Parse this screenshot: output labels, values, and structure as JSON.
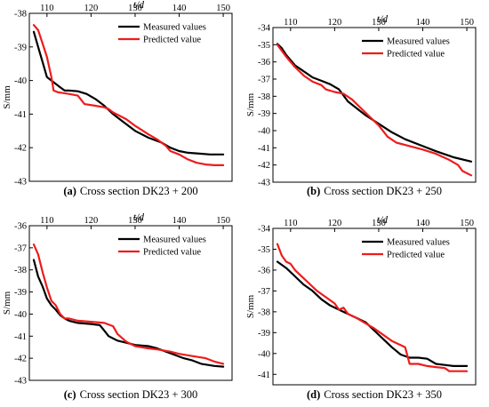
{
  "figure": {
    "colors": {
      "measured": "#000000",
      "predicted": "#ee1c1c",
      "axis": "#000000"
    }
  },
  "chart_data": [
    {
      "type": "line",
      "caption": {
        "letter": "(a)",
        "text": "Cross section DK23 + 200"
      },
      "xlabel": "t/d",
      "ylabel": "S/mm",
      "xlim": [
        106,
        152
      ],
      "ylim": [
        -43,
        -38
      ],
      "x_ticks": [
        110,
        120,
        130,
        140,
        150
      ],
      "y_ticks": [
        -38,
        -39,
        -40,
        -41,
        -42,
        -43
      ],
      "x_axis_position": "top",
      "grid": false,
      "legend": "top-right",
      "series": [
        {
          "name": "Measured values",
          "color": "#000000",
          "points": [
            [
              107,
              -38.55
            ],
            [
              108,
              -39.0
            ],
            [
              109,
              -39.45
            ],
            [
              110,
              -39.9
            ],
            [
              111,
              -40.0
            ],
            [
              112,
              -40.1
            ],
            [
              113,
              -40.2
            ],
            [
              114,
              -40.3
            ],
            [
              115,
              -40.3
            ],
            [
              117,
              -40.32
            ],
            [
              119,
              -40.4
            ],
            [
              121,
              -40.55
            ],
            [
              123,
              -40.75
            ],
            [
              125,
              -41.0
            ],
            [
              127,
              -41.2
            ],
            [
              130,
              -41.5
            ],
            [
              133,
              -41.7
            ],
            [
              136,
              -41.85
            ],
            [
              138,
              -42.0
            ],
            [
              140,
              -42.1
            ],
            [
              142,
              -42.15
            ],
            [
              145,
              -42.18
            ],
            [
              147,
              -42.2
            ],
            [
              150,
              -42.2
            ]
          ]
        },
        {
          "name": "Predicted value",
          "color": "#ee1c1c",
          "points": [
            [
              107,
              -38.35
            ],
            [
              108,
              -38.5
            ],
            [
              109,
              -38.9
            ],
            [
              110,
              -39.3
            ],
            [
              111,
              -39.9
            ],
            [
              111.5,
              -40.3
            ],
            [
              112.5,
              -40.35
            ],
            [
              115,
              -40.4
            ],
            [
              117,
              -40.45
            ],
            [
              118.5,
              -40.7
            ],
            [
              121,
              -40.75
            ],
            [
              123,
              -40.8
            ],
            [
              124,
              -40.85
            ],
            [
              125,
              -40.95
            ],
            [
              128,
              -41.15
            ],
            [
              130,
              -41.35
            ],
            [
              133,
              -41.6
            ],
            [
              135,
              -41.75
            ],
            [
              137,
              -41.95
            ],
            [
              138,
              -42.1
            ],
            [
              140,
              -42.2
            ],
            [
              142,
              -42.35
            ],
            [
              144,
              -42.45
            ],
            [
              146,
              -42.5
            ],
            [
              148,
              -42.52
            ],
            [
              150,
              -42.52
            ]
          ]
        }
      ]
    },
    {
      "type": "line",
      "caption": {
        "letter": "(b)",
        "text": "Cross section DK23 + 250"
      },
      "xlabel": "t/d",
      "ylabel": "S/mm",
      "xlim": [
        106,
        152
      ],
      "ylim": [
        -43,
        -34
      ],
      "x_ticks": [
        110,
        120,
        130,
        140,
        150
      ],
      "y_ticks": [
        -34,
        -35,
        -36,
        -37,
        -38,
        -39,
        -40,
        -41,
        -42,
        -43
      ],
      "x_axis_position": "top",
      "grid": false,
      "legend": "top-right",
      "series": [
        {
          "name": "Measured values",
          "color": "#000000",
          "points": [
            [
              107,
              -34.95
            ],
            [
              108,
              -35.2
            ],
            [
              109,
              -35.6
            ],
            [
              111,
              -36.2
            ],
            [
              113,
              -36.55
            ],
            [
              115,
              -36.9
            ],
            [
              117,
              -37.1
            ],
            [
              119,
              -37.3
            ],
            [
              121,
              -37.6
            ],
            [
              123,
              -38.3
            ],
            [
              125,
              -38.7
            ],
            [
              127,
              -39.1
            ],
            [
              130,
              -39.6
            ],
            [
              133,
              -40.1
            ],
            [
              136,
              -40.5
            ],
            [
              140,
              -40.9
            ],
            [
              143,
              -41.2
            ],
            [
              147,
              -41.55
            ],
            [
              151,
              -41.8
            ]
          ]
        },
        {
          "name": "Predicted value",
          "color": "#ee1c1c",
          "points": [
            [
              107,
              -35.0
            ],
            [
              108,
              -35.35
            ],
            [
              109,
              -35.7
            ],
            [
              111,
              -36.3
            ],
            [
              113,
              -36.8
            ],
            [
              115,
              -37.15
            ],
            [
              117,
              -37.35
            ],
            [
              118,
              -37.6
            ],
            [
              120,
              -37.75
            ],
            [
              122,
              -37.85
            ],
            [
              124,
              -38.2
            ],
            [
              126,
              -38.7
            ],
            [
              128,
              -39.2
            ],
            [
              130,
              -39.7
            ],
            [
              132,
              -40.35
            ],
            [
              134,
              -40.7
            ],
            [
              137,
              -40.9
            ],
            [
              140,
              -41.1
            ],
            [
              143,
              -41.35
            ],
            [
              146,
              -41.7
            ],
            [
              148,
              -42.0
            ],
            [
              149,
              -42.35
            ],
            [
              151,
              -42.6
            ]
          ]
        }
      ]
    },
    {
      "type": "line",
      "caption": {
        "letter": "(c)",
        "text": "Cross section DK23 + 300"
      },
      "xlabel": "t/d",
      "ylabel": "S/mm",
      "xlim": [
        106,
        152
      ],
      "ylim": [
        -43,
        -36
      ],
      "x_ticks": [
        110,
        120,
        130,
        140,
        150
      ],
      "y_ticks": [
        -36,
        -37,
        -38,
        -39,
        -40,
        -41,
        -42,
        -43
      ],
      "x_axis_position": "top",
      "grid": false,
      "legend": "top-right",
      "series": [
        {
          "name": "Measured values",
          "color": "#000000",
          "points": [
            [
              107,
              -37.55
            ],
            [
              108,
              -38.3
            ],
            [
              109,
              -38.75
            ],
            [
              110,
              -39.3
            ],
            [
              111,
              -39.6
            ],
            [
              112,
              -39.8
            ],
            [
              113,
              -40.05
            ],
            [
              114,
              -40.2
            ],
            [
              115,
              -40.3
            ],
            [
              117,
              -40.4
            ],
            [
              120,
              -40.45
            ],
            [
              122,
              -40.5
            ],
            [
              123,
              -40.75
            ],
            [
              124,
              -41.0
            ],
            [
              126,
              -41.2
            ],
            [
              128,
              -41.3
            ],
            [
              130,
              -41.4
            ],
            [
              133,
              -41.45
            ],
            [
              135,
              -41.55
            ],
            [
              137,
              -41.7
            ],
            [
              139,
              -41.85
            ],
            [
              141,
              -42.0
            ],
            [
              143,
              -42.1
            ],
            [
              145,
              -42.25
            ],
            [
              148,
              -42.35
            ],
            [
              150,
              -42.38
            ]
          ]
        },
        {
          "name": "Predicted value",
          "color": "#ee1c1c",
          "points": [
            [
              107,
              -36.85
            ],
            [
              108,
              -37.3
            ],
            [
              109,
              -38.1
            ],
            [
              110,
              -38.8
            ],
            [
              111,
              -39.4
            ],
            [
              112,
              -39.6
            ],
            [
              113,
              -40.0
            ],
            [
              114,
              -40.2
            ],
            [
              115,
              -40.2
            ],
            [
              117,
              -40.3
            ],
            [
              120,
              -40.35
            ],
            [
              123,
              -40.4
            ],
            [
              125,
              -40.55
            ],
            [
              126,
              -40.9
            ],
            [
              128,
              -41.25
            ],
            [
              130,
              -41.45
            ],
            [
              133,
              -41.55
            ],
            [
              135,
              -41.6
            ],
            [
              138,
              -41.7
            ],
            [
              140,
              -41.8
            ],
            [
              143,
              -41.9
            ],
            [
              146,
              -42.0
            ],
            [
              148,
              -42.15
            ],
            [
              150,
              -42.25
            ]
          ]
        }
      ]
    },
    {
      "type": "line",
      "caption": {
        "letter": "(d)",
        "text": "Cross section DK23 + 350"
      },
      "xlabel": "t/d",
      "ylabel": "S/mm",
      "xlim": [
        106,
        152
      ],
      "ylim": [
        -41.5,
        -34
      ],
      "x_ticks": [
        110,
        120,
        130,
        140,
        150
      ],
      "y_ticks": [
        -34,
        -35,
        -36,
        -37,
        -38,
        -39,
        -40,
        -41
      ],
      "x_axis_position": "top",
      "grid": false,
      "legend": "top-right",
      "series": [
        {
          "name": "Measured values",
          "color": "#000000",
          "points": [
            [
              107,
              -35.6
            ],
            [
              109,
              -35.9
            ],
            [
              111,
              -36.3
            ],
            [
              113,
              -36.7
            ],
            [
              115,
              -37.0
            ],
            [
              117,
              -37.4
            ],
            [
              119,
              -37.7
            ],
            [
              121,
              -37.9
            ],
            [
              123,
              -38.1
            ],
            [
              125,
              -38.3
            ],
            [
              127,
              -38.5
            ],
            [
              129,
              -38.9
            ],
            [
              131,
              -39.3
            ],
            [
              133,
              -39.7
            ],
            [
              135,
              -40.05
            ],
            [
              137,
              -40.2
            ],
            [
              139,
              -40.2
            ],
            [
              141,
              -40.25
            ],
            [
              143,
              -40.5
            ],
            [
              145,
              -40.55
            ],
            [
              147,
              -40.6
            ],
            [
              150,
              -40.6
            ]
          ]
        },
        {
          "name": "Predicted value",
          "color": "#ee1c1c",
          "points": [
            [
              107,
              -34.75
            ],
            [
              108,
              -35.3
            ],
            [
              109,
              -35.6
            ],
            [
              110,
              -35.7
            ],
            [
              111,
              -36.0
            ],
            [
              113,
              -36.4
            ],
            [
              114,
              -36.6
            ],
            [
              116,
              -37.0
            ],
            [
              118,
              -37.3
            ],
            [
              120,
              -37.6
            ],
            [
              121,
              -37.9
            ],
            [
              122,
              -37.8
            ],
            [
              123,
              -38.1
            ],
            [
              125,
              -38.3
            ],
            [
              127,
              -38.55
            ],
            [
              129,
              -38.8
            ],
            [
              131,
              -39.1
            ],
            [
              133,
              -39.4
            ],
            [
              135,
              -39.6
            ],
            [
              136,
              -39.7
            ],
            [
              137,
              -40.5
            ],
            [
              139,
              -40.5
            ],
            [
              141,
              -40.6
            ],
            [
              143,
              -40.65
            ],
            [
              145,
              -40.7
            ],
            [
              146,
              -40.85
            ],
            [
              148,
              -40.85
            ],
            [
              150,
              -40.85
            ]
          ]
        }
      ]
    }
  ]
}
